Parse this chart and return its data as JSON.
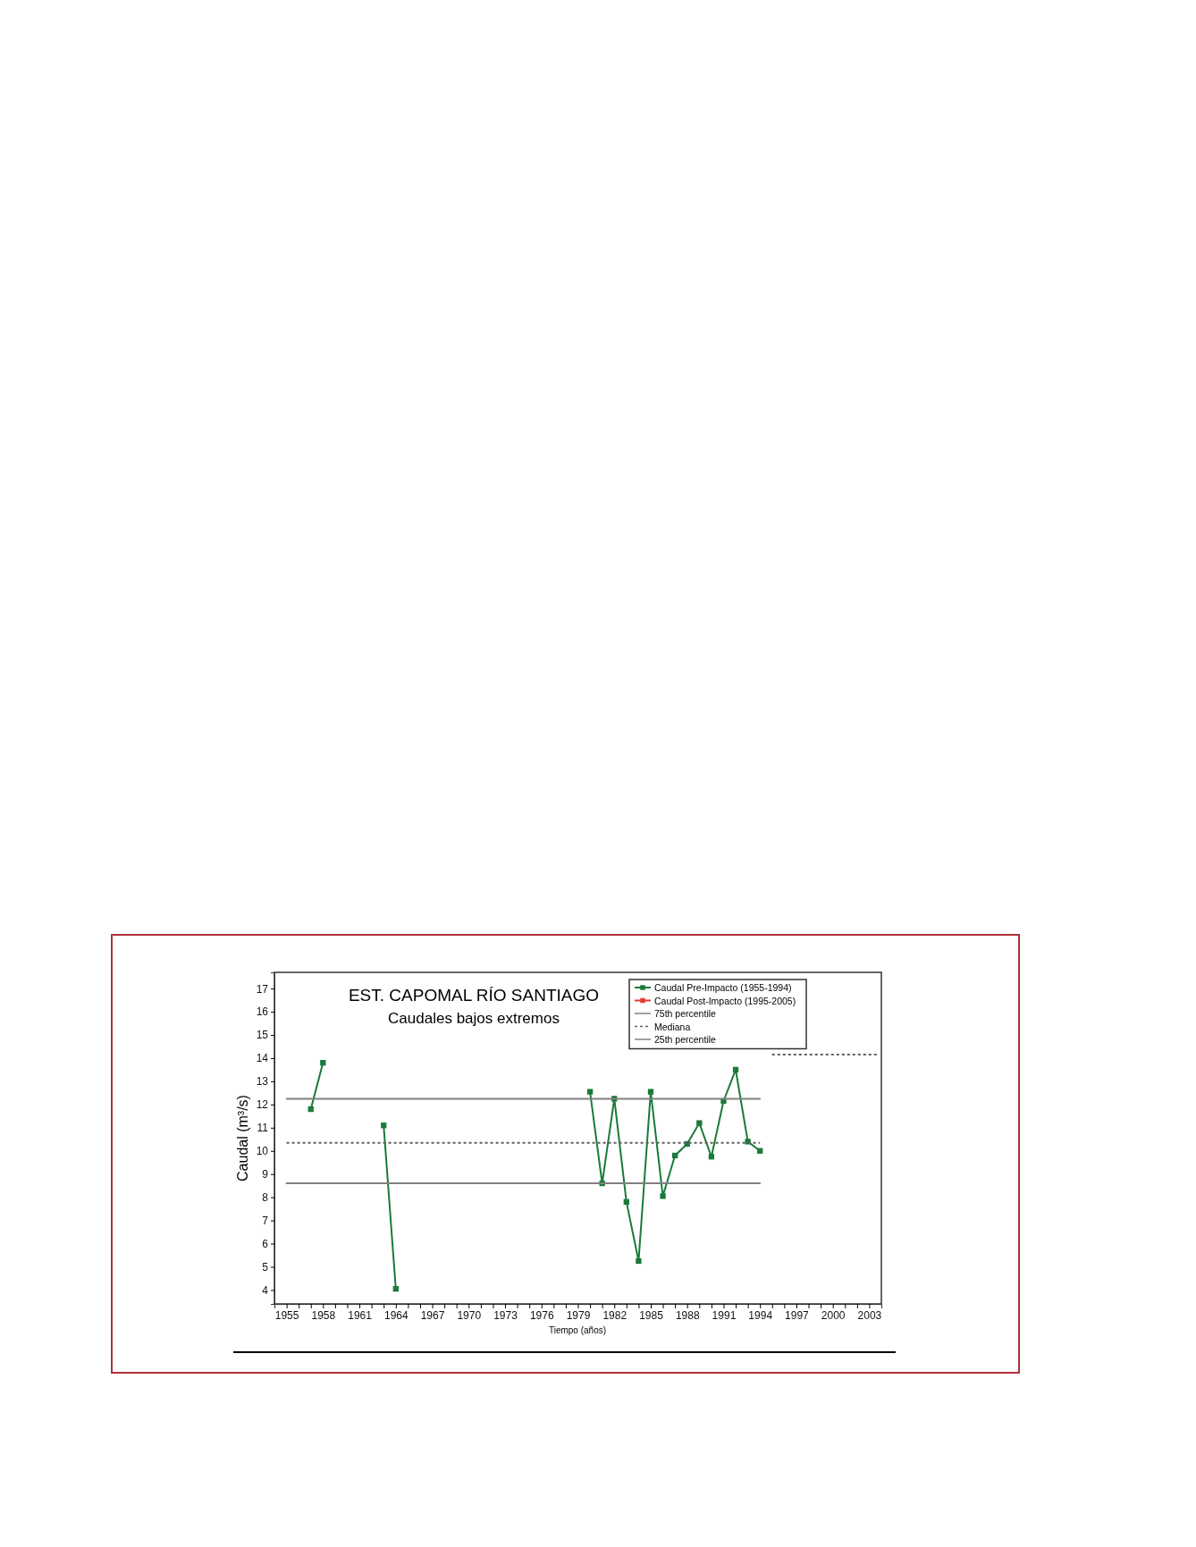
{
  "chart_data": {
    "type": "line",
    "title": "EST. CAPOMAL RÍO SANTIAGO",
    "subtitle": "Caudales bajos extremos",
    "xlabel": "Tiempo (años)",
    "ylabel": "Caudal (m³/s)",
    "xlim": [
      1954,
      2004
    ],
    "ylim": [
      3.4,
      17.7
    ],
    "xticks": [
      1955,
      {
        "value": 1956,
        "label": null
      },
      {
        "value": 1957,
        "label": null
      },
      1958,
      {
        "value": 1959,
        "label": null
      },
      {
        "value": 1960,
        "label": null
      },
      1961,
      {
        "value": 1962,
        "label": null
      },
      {
        "value": 1963,
        "label": null
      },
      1964,
      {
        "value": 1965,
        "label": null
      },
      {
        "value": 1966,
        "label": null
      },
      1967,
      {
        "value": 1968,
        "label": null
      },
      {
        "value": 1969,
        "label": null
      },
      1970,
      {
        "value": 1971,
        "label": null
      },
      {
        "value": 1972,
        "label": null
      },
      1973,
      {
        "value": 1974,
        "label": null
      },
      {
        "value": 1975,
        "label": null
      },
      1976,
      {
        "value": 1977,
        "label": null
      },
      {
        "value": 1978,
        "label": null
      },
      1979,
      {
        "value": 1980,
        "label": null
      },
      {
        "value": 1981,
        "label": null
      },
      1982,
      {
        "value": 1983,
        "label": null
      },
      {
        "value": 1984,
        "label": null
      },
      1985,
      {
        "value": 1986,
        "label": null
      },
      {
        "value": 1987,
        "label": null
      },
      1988,
      {
        "value": 1989,
        "label": null
      },
      {
        "value": 1990,
        "label": null
      },
      1991,
      {
        "value": 1992,
        "label": null
      },
      {
        "value": 1993,
        "label": null
      },
      1994,
      {
        "value": 1995,
        "label": null
      },
      {
        "value": 1996,
        "label": null
      },
      1997,
      {
        "value": 1998,
        "label": null
      },
      {
        "value": 1999,
        "label": null
      },
      2000,
      {
        "value": 2001,
        "label": null
      },
      {
        "value": 2002,
        "label": null
      },
      2003
    ],
    "yticks": [
      4,
      5,
      6,
      7,
      8,
      9,
      10,
      11,
      12,
      13,
      14,
      15,
      16,
      17
    ],
    "grid": false,
    "legend": "top right",
    "series": [
      {
        "name": "Caudal Pre-Impacto (1955-1994)",
        "color": "#1a7a3a",
        "marker": "square",
        "line_style": "solid",
        "x": [
          1957,
          1958,
          1960,
          1963,
          1964,
          1970,
          1980,
          1981,
          1982,
          1983,
          1984,
          1985,
          1986,
          1987,
          1988,
          1989,
          1990,
          1991,
          1992,
          1993,
          1994
        ],
        "values": [
          11.8,
          13.8,
          null,
          11.1,
          4.05,
          null,
          12.55,
          8.6,
          12.25,
          7.8,
          5.25,
          12.55,
          8.05,
          9.8,
          10.3,
          11.2,
          9.75,
          12.15,
          13.5,
          10.4,
          10.0
        ]
      },
      {
        "name": "Caudal Post-Impacto (1995-2005)",
        "color": "#e03c31",
        "marker": "square",
        "line_style": "solid"
      },
      {
        "name": "75th percentile",
        "color": "#808080",
        "marker": "none",
        "line_style": "solid",
        "x": [
          1955,
          1994
        ],
        "values": [
          12.25,
          12.25
        ]
      },
      {
        "name": "Mediana",
        "color": "#606060",
        "marker": "none",
        "line_style": "dotted",
        "x": [
          1955,
          1994,
          1994.5,
          1995,
          2003.8
        ],
        "values": [
          10.35,
          10.35,
          null,
          14.15,
          14.15
        ]
      },
      {
        "name": "25th percentile",
        "color": "#808080",
        "marker": "none",
        "line_style": "solid",
        "x": [
          1955,
          1994
        ],
        "values": [
          8.6,
          8.6
        ]
      }
    ]
  }
}
